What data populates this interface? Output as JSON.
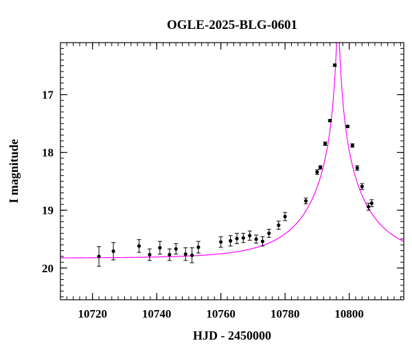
{
  "chart_data": {
    "type": "scatter",
    "title": "OGLE-2025-BLG-0601",
    "xlabel": "HJD - 2450000",
    "ylabel": "I magnitude",
    "xlim": [
      10710,
      10817
    ],
    "ylim": [
      20.55,
      16.1
    ],
    "y_inverted": true,
    "xticks": [
      10720,
      10740,
      10760,
      10780,
      10800
    ],
    "yticks": [
      17,
      18,
      19,
      20
    ],
    "x_minor_step": 2,
    "y_minor_step": 0.1,
    "grid": false,
    "colors": {
      "points": "#000000",
      "model": "#ff00ff",
      "axes": "#000000"
    },
    "series": [
      {
        "type": "scatter_errorbars",
        "points": [
          {
            "x": 10722.0,
            "y": 19.8,
            "err": 0.17
          },
          {
            "x": 10726.5,
            "y": 19.71,
            "err": 0.15
          },
          {
            "x": 10734.5,
            "y": 19.62,
            "err": 0.11
          },
          {
            "x": 10737.8,
            "y": 19.77,
            "err": 0.1
          },
          {
            "x": 10741.0,
            "y": 19.65,
            "err": 0.11
          },
          {
            "x": 10744.0,
            "y": 19.77,
            "err": 0.1
          },
          {
            "x": 10746.0,
            "y": 19.67,
            "err": 0.09
          },
          {
            "x": 10749.0,
            "y": 19.76,
            "err": 0.11
          },
          {
            "x": 10751.0,
            "y": 19.78,
            "err": 0.13
          },
          {
            "x": 10753.0,
            "y": 19.64,
            "err": 0.1
          },
          {
            "x": 10760.0,
            "y": 19.55,
            "err": 0.09
          },
          {
            "x": 10763.0,
            "y": 19.53,
            "err": 0.09
          },
          {
            "x": 10765.0,
            "y": 19.49,
            "err": 0.09
          },
          {
            "x": 10767.0,
            "y": 19.48,
            "err": 0.08
          },
          {
            "x": 10769.0,
            "y": 19.44,
            "err": 0.08
          },
          {
            "x": 10771.0,
            "y": 19.5,
            "err": 0.07
          },
          {
            "x": 10773.0,
            "y": 19.54,
            "err": 0.08
          },
          {
            "x": 10775.0,
            "y": 19.4,
            "err": 0.07
          },
          {
            "x": 10778.0,
            "y": 19.26,
            "err": 0.07
          },
          {
            "x": 10780.0,
            "y": 19.11,
            "err": 0.07
          },
          {
            "x": 10786.5,
            "y": 18.84,
            "err": 0.05
          },
          {
            "x": 10790.0,
            "y": 18.34,
            "err": 0.04
          },
          {
            "x": 10791.0,
            "y": 18.26,
            "err": 0.03
          },
          {
            "x": 10792.5,
            "y": 17.85,
            "err": 0.03
          },
          {
            "x": 10794.0,
            "y": 17.45,
            "err": 0.02
          },
          {
            "x": 10795.5,
            "y": 16.49,
            "err": 0.02
          },
          {
            "x": 10799.5,
            "y": 17.55,
            "err": 0.02
          },
          {
            "x": 10801.0,
            "y": 17.88,
            "err": 0.03
          },
          {
            "x": 10802.5,
            "y": 18.27,
            "err": 0.04
          },
          {
            "x": 10804.0,
            "y": 18.59,
            "err": 0.05
          },
          {
            "x": 10806.0,
            "y": 18.94,
            "err": 0.06
          },
          {
            "x": 10807.0,
            "y": 18.88,
            "err": 0.06
          }
        ]
      },
      {
        "type": "model_curve",
        "model": {
          "t0": 10796.5,
          "tE": 19.4,
          "u0": 0.024,
          "m_base": 19.83
        }
      }
    ]
  }
}
